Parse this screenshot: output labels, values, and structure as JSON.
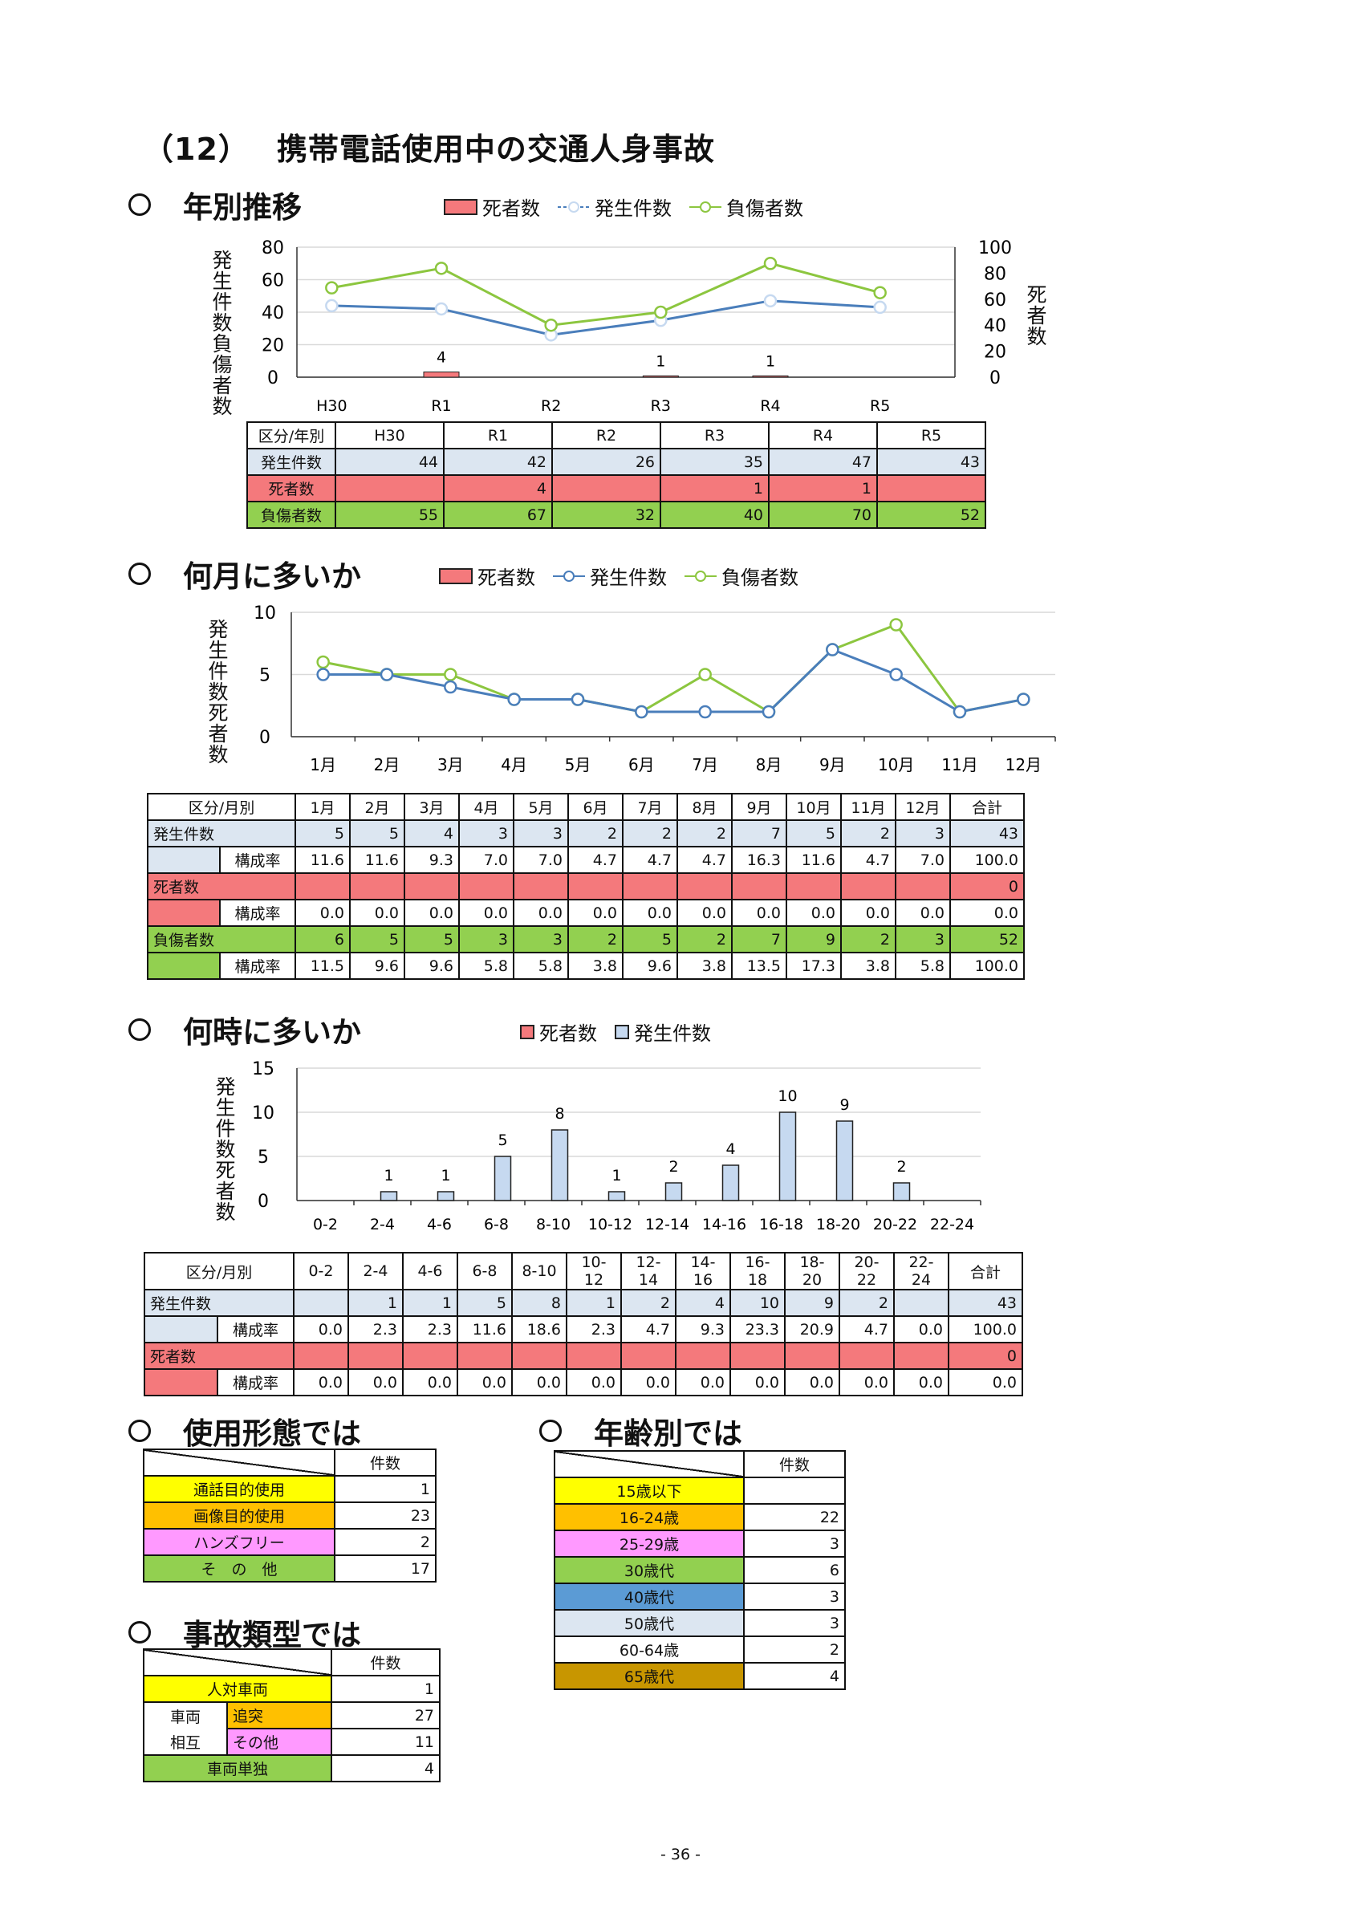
{
  "title": {
    "number": "（12）",
    "text": "携帯電話使用中の交通人身事故"
  },
  "sections": {
    "yearly": "年別推移",
    "monthly": "何月に多いか",
    "hourly": "何時に多いか",
    "usage": "使用形態では",
    "age": "年齢別では",
    "type": "事故類型では"
  },
  "legend": {
    "deaths": "死者数",
    "incidents": "発生件数",
    "injured": "負傷者数"
  },
  "axis_labels": {
    "yearly_left": "発生件数負傷者数",
    "yearly_right": "死者数",
    "monthly_left": "発生件数死者数",
    "hourly_left": "発生件数死者数"
  },
  "chart_data": [
    {
      "type": "line",
      "categories": [
        "H30",
        "R1",
        "R2",
        "R3",
        "R4",
        "R5"
      ],
      "series": [
        {
          "name": "発生件数",
          "values": [
            44,
            42,
            26,
            35,
            47,
            43
          ],
          "axis": "left",
          "color": "#4a7ebb"
        },
        {
          "name": "負傷者数",
          "values": [
            55,
            67,
            32,
            40,
            70,
            52
          ],
          "axis": "left",
          "color": "#8cc63f"
        },
        {
          "name": "死者数",
          "values": [
            null,
            4,
            null,
            1,
            1,
            null
          ],
          "axis": "right",
          "kind": "bar",
          "color": "#f4797c"
        }
      ],
      "ylim": [
        0,
        80
      ],
      "yticks": [
        0,
        20,
        40,
        60,
        80
      ],
      "y2lim": [
        0,
        100
      ],
      "y2ticks": [
        0,
        20,
        40,
        60,
        80,
        100
      ],
      "grid": true
    },
    {
      "type": "line",
      "categories": [
        "1月",
        "2月",
        "3月",
        "4月",
        "5月",
        "6月",
        "7月",
        "8月",
        "9月",
        "10月",
        "11月",
        "12月"
      ],
      "series": [
        {
          "name": "発生件数",
          "values": [
            5,
            5,
            4,
            3,
            3,
            2,
            2,
            2,
            7,
            5,
            2,
            3
          ],
          "color": "#4a7ebb"
        },
        {
          "name": "負傷者数",
          "values": [
            6,
            5,
            5,
            3,
            3,
            2,
            5,
            2,
            7,
            9,
            2,
            3
          ],
          "color": "#8cc63f"
        },
        {
          "name": "死者数",
          "values": [
            0,
            0,
            0,
            0,
            0,
            0,
            0,
            0,
            0,
            0,
            0,
            0
          ],
          "kind": "bar",
          "color": "#f4797c"
        }
      ],
      "ylim": [
        0,
        10
      ],
      "yticks": [
        0,
        5,
        10
      ],
      "grid": true
    },
    {
      "type": "bar",
      "categories": [
        "0-2",
        "2-4",
        "4-6",
        "6-8",
        "8-10",
        "10-12",
        "12-14",
        "14-16",
        "16-18",
        "18-20",
        "20-22",
        "22-24"
      ],
      "series": [
        {
          "name": "死者数",
          "values": [
            0,
            0,
            0,
            0,
            0,
            0,
            0,
            0,
            0,
            0,
            0,
            0
          ],
          "color": "#f4797c"
        },
        {
          "name": "発生件数",
          "values": [
            null,
            1,
            1,
            5,
            8,
            1,
            2,
            4,
            10,
            9,
            2,
            null
          ],
          "color": "#c6d9f0"
        }
      ],
      "ylim": [
        0,
        15
      ],
      "yticks": [
        0,
        5,
        10,
        15
      ],
      "grid": true
    }
  ],
  "yearly_table": {
    "header": [
      "区分/年別",
      "H30",
      "R1",
      "R2",
      "R3",
      "R4",
      "R5"
    ],
    "rows": [
      {
        "label": "発生件数",
        "values": [
          "44",
          "42",
          "26",
          "35",
          "47",
          "43"
        ]
      },
      {
        "label": "死者数",
        "values": [
          "",
          "4",
          "",
          "1",
          "1",
          ""
        ]
      },
      {
        "label": "負傷者数",
        "values": [
          "55",
          "67",
          "32",
          "40",
          "70",
          "52"
        ]
      }
    ]
  },
  "monthly_table": {
    "header": [
      "区分/月別",
      "1月",
      "2月",
      "3月",
      "4月",
      "5月",
      "6月",
      "7月",
      "8月",
      "9月",
      "10月",
      "11月",
      "12月",
      "合計"
    ],
    "rate_label": "構成率",
    "rows": [
      {
        "label": "発生件数",
        "values": [
          "5",
          "5",
          "4",
          "3",
          "3",
          "2",
          "2",
          "2",
          "7",
          "5",
          "2",
          "3",
          "43"
        ],
        "rates": [
          "11.6",
          "11.6",
          "9.3",
          "7.0",
          "7.0",
          "4.7",
          "4.7",
          "4.7",
          "16.3",
          "11.6",
          "4.7",
          "7.0",
          "100.0"
        ]
      },
      {
        "label": "死者数",
        "values": [
          "",
          "",
          "",
          "",
          "",
          "",
          "",
          "",
          "",
          "",
          "",
          "",
          "0"
        ],
        "rates": [
          "0.0",
          "0.0",
          "0.0",
          "0.0",
          "0.0",
          "0.0",
          "0.0",
          "0.0",
          "0.0",
          "0.0",
          "0.0",
          "0.0",
          "0.0"
        ]
      },
      {
        "label": "負傷者数",
        "values": [
          "6",
          "5",
          "5",
          "3",
          "3",
          "2",
          "5",
          "2",
          "7",
          "9",
          "2",
          "3",
          "52"
        ],
        "rates": [
          "11.5",
          "9.6",
          "9.6",
          "5.8",
          "5.8",
          "3.8",
          "9.6",
          "3.8",
          "13.5",
          "17.3",
          "3.8",
          "5.8",
          "100.0"
        ]
      }
    ]
  },
  "hourly_table": {
    "header": [
      "区分/月別",
      "0-2",
      "2-4",
      "4-6",
      "6-8",
      "8-10",
      "10-12",
      "12-14",
      "14-16",
      "16-18",
      "18-20",
      "20-22",
      "22-24",
      "合計"
    ],
    "rate_label": "構成率",
    "rows": [
      {
        "label": "発生件数",
        "values": [
          "",
          "1",
          "1",
          "5",
          "8",
          "1",
          "2",
          "4",
          "10",
          "9",
          "2",
          "",
          "43"
        ],
        "rates": [
          "0.0",
          "2.3",
          "2.3",
          "11.6",
          "18.6",
          "2.3",
          "4.7",
          "9.3",
          "23.3",
          "20.9",
          "4.7",
          "0.0",
          "100.0"
        ]
      },
      {
        "label": "死者数",
        "values": [
          "",
          "",
          "",
          "",
          "",
          "",
          "",
          "",
          "",
          "",
          "",
          "",
          "0"
        ],
        "rates": [
          "0.0",
          "0.0",
          "0.0",
          "0.0",
          "0.0",
          "0.0",
          "0.0",
          "0.0",
          "0.0",
          "0.0",
          "0.0",
          "0.0",
          "0.0"
        ]
      }
    ]
  },
  "usage_table": {
    "header": "件数",
    "rows": [
      {
        "label": "通話目的使用",
        "value": "1",
        "color": "#ffff00"
      },
      {
        "label": "画像目的使用",
        "value": "23",
        "color": "#ffc000"
      },
      {
        "label": "ハンズフリー",
        "value": "2",
        "color": "#ff99ff"
      },
      {
        "label": "そ　の　他",
        "value": "17",
        "color": "#92d050"
      }
    ]
  },
  "type_table": {
    "header": "件数",
    "r1": {
      "label": "人対車両",
      "value": "1"
    },
    "group_label_1": "車両",
    "group_label_2": "相互",
    "r2": {
      "label": "追突",
      "value": "27"
    },
    "r3": {
      "label": "その他",
      "value": "11"
    },
    "r4": {
      "label": "車両単独",
      "value": "4"
    }
  },
  "age_table": {
    "header": "件数",
    "rows": [
      {
        "label": "15歳以下",
        "value": "",
        "color": "#ffff00"
      },
      {
        "label": "16-24歳",
        "value": "22",
        "color": "#ffc000"
      },
      {
        "label": "25-29歳",
        "value": "3",
        "color": "#ff99ff"
      },
      {
        "label": "30歳代",
        "value": "6",
        "color": "#92d050"
      },
      {
        "label": "40歳代",
        "value": "3",
        "color": "#5b9bd5"
      },
      {
        "label": "50歳代",
        "value": "3",
        "color": "#dce6f1"
      },
      {
        "label": "60-64歳",
        "value": "2",
        "color": "#ffffff"
      },
      {
        "label": "65歳代",
        "value": "4",
        "color": "#c89600"
      }
    ]
  },
  "page_number": "- 36 -"
}
